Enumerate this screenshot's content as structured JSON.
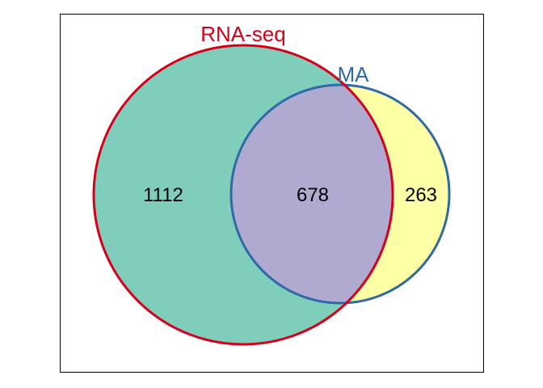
{
  "venn": {
    "sets": [
      {
        "name": "RNA-seq",
        "outline_color": "#d7001b",
        "fill_color": "#7fcdbb"
      },
      {
        "name": "MA",
        "outline_color": "#2f6aa8",
        "fill_color": "#ffffa6"
      }
    ],
    "overlap_fill_color": "#b0aad1",
    "regions": {
      "rna_seq_only": "1112",
      "both": "678",
      "ma_only": "263"
    },
    "frame_color": "#000000"
  }
}
